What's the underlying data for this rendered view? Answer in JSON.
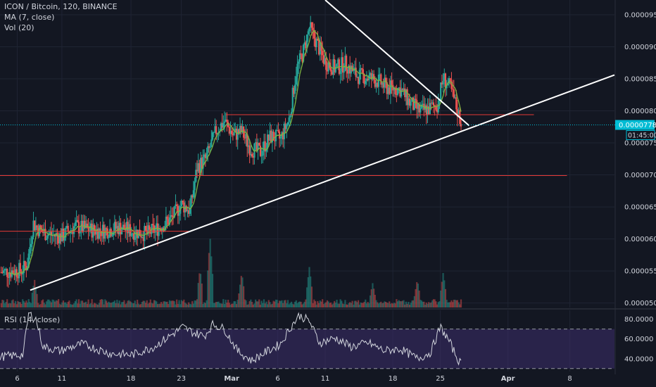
{
  "colors": {
    "background": "#131722",
    "grid": "#1f2433",
    "axis_text": "#d1d4dc",
    "up": "#26a69a",
    "down": "#ef5350",
    "ma": "#7cb342",
    "support": "#ffffff",
    "resistance": "#e53935",
    "price_tag": "#00bcd4",
    "rsi_line": "#d1d4dc",
    "rsi_band": "#3d2d6b"
  },
  "legend": {
    "symbol": "ICON / Bitcoin, 120, BINANCE",
    "ma": "MA (7, close)",
    "vol": "Vol (20)",
    "rsi": "RSI (14, close)"
  },
  "price_tag": {
    "value": "0.0000778",
    "countdown": "01:45:00"
  },
  "chart_data": [
    {
      "type": "candlestick",
      "title": "ICON / Bitcoin, 120, BINANCE",
      "y_axis_ticks": [
        "0.0000950",
        "0.0000900",
        "0.0000850",
        "0.0000800",
        "0.0000750",
        "0.0000700",
        "0.0000650",
        "0.0000600",
        "0.0000550",
        "0.0000500"
      ],
      "ylim": [
        4.93e-05,
        9.73e-05
      ],
      "x_axis_ticks": [
        "6",
        "11",
        "18",
        "23",
        "Mar",
        "6",
        "11",
        "18",
        "25",
        "Apr",
        "8"
      ],
      "x_axis_ticks_day_index": [
        0,
        3.1,
        7.9,
        11.4,
        14.9,
        18.1,
        21.4,
        26.1,
        29.4,
        34.1,
        38.4
      ],
      "x_axis_range_days": [
        -1.2,
        41.5
      ],
      "grid": true,
      "close_path": [
        {
          "day": -1.2,
          "price": 5.48e-05
        },
        {
          "day": 0.3,
          "price": 5.51e-05
        },
        {
          "day": 0.7,
          "price": 5.6e-05
        },
        {
          "day": 1.1,
          "price": 6.25e-05
        },
        {
          "day": 1.6,
          "price": 6.12e-05
        },
        {
          "day": 2.4,
          "price": 6.06e-05
        },
        {
          "day": 3.1,
          "price": 6.04e-05
        },
        {
          "day": 4.0,
          "price": 6.2e-05
        },
        {
          "day": 5.0,
          "price": 6.14e-05
        },
        {
          "day": 6.0,
          "price": 6.13e-05
        },
        {
          "day": 7.1,
          "price": 6.18e-05
        },
        {
          "day": 8.0,
          "price": 6.12e-05
        },
        {
          "day": 9.0,
          "price": 6.08e-05
        },
        {
          "day": 9.8,
          "price": 6.17e-05
        },
        {
          "day": 10.7,
          "price": 6.32e-05
        },
        {
          "day": 11.4,
          "price": 6.54e-05
        },
        {
          "day": 12.0,
          "price": 6.45e-05
        },
        {
          "day": 12.5,
          "price": 7.12e-05
        },
        {
          "day": 13.1,
          "price": 7.25e-05
        },
        {
          "day": 13.8,
          "price": 7.68e-05
        },
        {
          "day": 14.4,
          "price": 7.84e-05
        },
        {
          "day": 15.0,
          "price": 7.62e-05
        },
        {
          "day": 15.6,
          "price": 7.68e-05
        },
        {
          "day": 16.2,
          "price": 7.41e-05
        },
        {
          "day": 16.9,
          "price": 7.36e-05
        },
        {
          "day": 17.6,
          "price": 7.6e-05
        },
        {
          "day": 18.3,
          "price": 7.56e-05
        },
        {
          "day": 18.9,
          "price": 7.88e-05
        },
        {
          "day": 19.4,
          "price": 8.64e-05
        },
        {
          "day": 19.9,
          "price": 8.94e-05
        },
        {
          "day": 20.3,
          "price": 9.3e-05
        },
        {
          "day": 20.8,
          "price": 9.06e-05
        },
        {
          "day": 21.4,
          "price": 8.76e-05
        },
        {
          "day": 22.1,
          "price": 8.66e-05
        },
        {
          "day": 22.8,
          "price": 8.74e-05
        },
        {
          "day": 23.6,
          "price": 8.55e-05
        },
        {
          "day": 24.4,
          "price": 8.52e-05
        },
        {
          "day": 25.1,
          "price": 8.46e-05
        },
        {
          "day": 25.7,
          "price": 8.36e-05
        },
        {
          "day": 26.6,
          "price": 8.34e-05
        },
        {
          "day": 27.3,
          "price": 8.12e-05
        },
        {
          "day": 28.0,
          "price": 7.99e-05
        },
        {
          "day": 28.7,
          "price": 8.04e-05
        },
        {
          "day": 29.2,
          "price": 8.1e-05
        },
        {
          "day": 29.6,
          "price": 8.51e-05
        },
        {
          "day": 30.1,
          "price": 8.35e-05
        },
        {
          "day": 30.6,
          "price": 7.99e-05
        },
        {
          "day": 30.9,
          "price": 7.78e-05
        }
      ],
      "ma_period": 7,
      "volume_spikes": [
        {
          "day": 1.2,
          "ratio": 0.4
        },
        {
          "day": 12.7,
          "ratio": 0.55
        },
        {
          "day": 13.4,
          "ratio": 1.0
        },
        {
          "day": 15.6,
          "ratio": 0.5
        },
        {
          "day": 20.3,
          "ratio": 0.58
        },
        {
          "day": 24.7,
          "ratio": 0.35
        },
        {
          "day": 27.8,
          "ratio": 0.4
        },
        {
          "day": 29.6,
          "ratio": 0.5
        }
      ],
      "trendlines": [
        {
          "name": "ascending-support",
          "color": "#ffffff",
          "from": {
            "day": 0.9,
            "price": 5.2e-05
          },
          "to": {
            "day": 41.5,
            "price": 8.56e-05
          }
        },
        {
          "name": "descending-resistance",
          "color": "#ffffff",
          "from": {
            "day": 21.4,
            "price": 9.73e-05
          },
          "to": {
            "day": 31.4,
            "price": 7.77e-05
          }
        }
      ],
      "horizontal_levels": [
        {
          "name": "level-0000794",
          "color": "#e53935",
          "price": 7.94e-05,
          "from_day": 14.5,
          "to_day": 35.9
        },
        {
          "name": "level-0000699",
          "color": "#e53935",
          "price": 6.99e-05,
          "from_day": -1.2,
          "to_day": 38.2
        },
        {
          "name": "level-0000612",
          "color": "#e53935",
          "price": 6.12e-05,
          "from_day": -1.2,
          "to_day": 11.9
        }
      ],
      "current_price": 7.78e-05
    },
    {
      "type": "line",
      "title": "RSI (14, close)",
      "y_axis_ticks": [
        "80.0000",
        "60.0000",
        "40.0000"
      ],
      "ylim": [
        27,
        89
      ],
      "band": [
        30,
        70
      ],
      "grid": true,
      "rsi_path": [
        {
          "day": -1.2,
          "value": 42
        },
        {
          "day": 0.4,
          "value": 44
        },
        {
          "day": 0.8,
          "value": 86
        },
        {
          "day": 1.3,
          "value": 80
        },
        {
          "day": 1.8,
          "value": 52
        },
        {
          "day": 3.0,
          "value": 48
        },
        {
          "day": 4.5,
          "value": 55
        },
        {
          "day": 6.5,
          "value": 45
        },
        {
          "day": 8.0,
          "value": 44
        },
        {
          "day": 9.5,
          "value": 52
        },
        {
          "day": 10.5,
          "value": 62
        },
        {
          "day": 11.5,
          "value": 72
        },
        {
          "day": 12.3,
          "value": 66
        },
        {
          "day": 13.0,
          "value": 63
        },
        {
          "day": 13.6,
          "value": 75
        },
        {
          "day": 14.4,
          "value": 70
        },
        {
          "day": 15.3,
          "value": 48
        },
        {
          "day": 16.3,
          "value": 38
        },
        {
          "day": 17.3,
          "value": 47
        },
        {
          "day": 18.3,
          "value": 55
        },
        {
          "day": 19.0,
          "value": 72
        },
        {
          "day": 19.6,
          "value": 84
        },
        {
          "day": 20.3,
          "value": 78
        },
        {
          "day": 21.0,
          "value": 56
        },
        {
          "day": 22.1,
          "value": 61
        },
        {
          "day": 23.2,
          "value": 52
        },
        {
          "day": 24.4,
          "value": 56
        },
        {
          "day": 25.5,
          "value": 48
        },
        {
          "day": 26.6,
          "value": 50
        },
        {
          "day": 27.8,
          "value": 40
        },
        {
          "day": 28.7,
          "value": 46
        },
        {
          "day": 29.4,
          "value": 72
        },
        {
          "day": 30.0,
          "value": 58
        },
        {
          "day": 30.6,
          "value": 40
        },
        {
          "day": 30.9,
          "value": 33
        }
      ]
    }
  ]
}
